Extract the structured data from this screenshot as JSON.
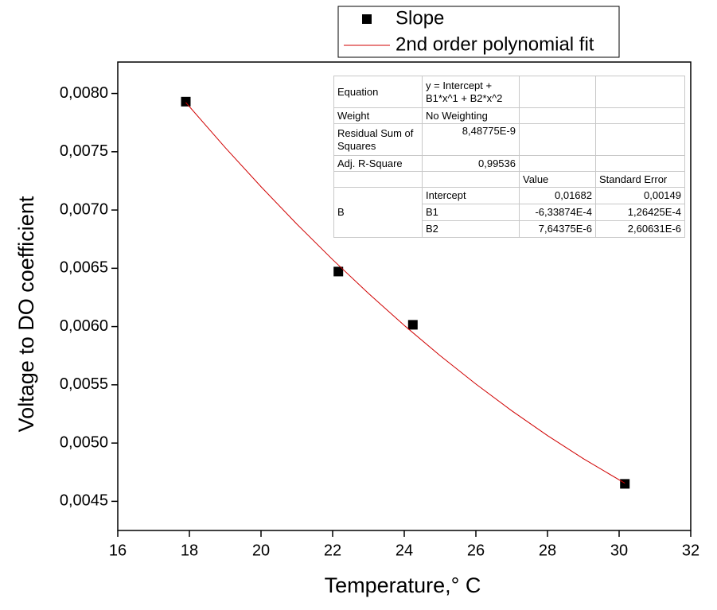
{
  "chart_data": {
    "type": "scatter",
    "xlabel": "Temperature,° C",
    "ylabel": "Voltage to DO coefficient",
    "xlim": [
      16,
      32
    ],
    "xticks": [
      16,
      18,
      20,
      22,
      24,
      26,
      28,
      30,
      32
    ],
    "ylim": [
      0.00425,
      0.00827
    ],
    "yticks": [
      {
        "value": 0.0045,
        "label": "0,0045"
      },
      {
        "value": 0.005,
        "label": "0,0050"
      },
      {
        "value": 0.0055,
        "label": "0,0055"
      },
      {
        "value": 0.006,
        "label": "0,0060"
      },
      {
        "value": 0.0065,
        "label": "0,0065"
      },
      {
        "value": 0.007,
        "label": "0,0070"
      },
      {
        "value": 0.0075,
        "label": "0,0075"
      },
      {
        "value": 0.008,
        "label": "0,0080"
      }
    ],
    "legend": "top",
    "series": [
      {
        "name": "Slope",
        "type": "scatter",
        "color": "#000000",
        "x": [
          17.9,
          22.16,
          24.24,
          30.16
        ],
        "values": [
          0.00793,
          0.006472,
          0.006015,
          0.00465
        ]
      },
      {
        "name": "2nd order polynomial fit",
        "type": "line",
        "color": "#d00000",
        "x": [
          17.9,
          19,
          20,
          21,
          22,
          23,
          24,
          25,
          26,
          27,
          28,
          29,
          30.16
        ],
        "values": [
          0.0079228,
          0.0075358,
          0.0072,
          0.0068795,
          0.0065744,
          0.0062844,
          0.0060098,
          0.0057504,
          0.0055065,
          0.0052777,
          0.0050642,
          0.0048661,
          0.0046554
        ]
      }
    ],
    "fit_table": {
      "equation_label": "Equation",
      "equation": "y = Intercept + B1*x^1 + B2*x^2",
      "weight_label": "Weight",
      "weight": "No Weighting",
      "rss_label": "Residual Sum of Squares",
      "rss": "8,48775E-9",
      "adj_r2_label": "Adj. R-Square",
      "adj_r2": "0,99536",
      "columns": [
        "Value",
        "Standard Error"
      ],
      "group": "B",
      "params": [
        {
          "name": "Intercept",
          "value": "0,01682",
          "error": "0,00149"
        },
        {
          "name": "B1",
          "value": "-6,33874E-4",
          "error": "1,26425E-4"
        },
        {
          "name": "B2",
          "value": "7,64375E-6",
          "error": "2,60631E-6"
        }
      ]
    }
  }
}
